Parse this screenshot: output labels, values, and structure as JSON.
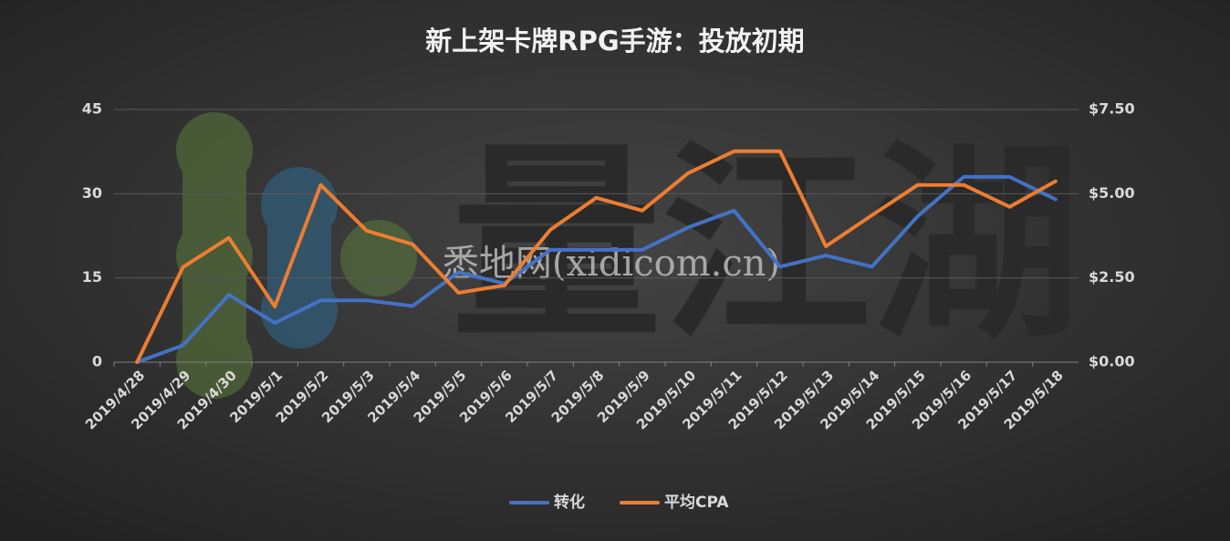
{
  "chart_data": {
    "type": "line",
    "title": "新上架卡牌RPG手游：投放初期",
    "x": [
      "2019/4/28",
      "2019/4/29",
      "2019/4/30",
      "2019/5/1",
      "2019/5/2",
      "2019/5/3",
      "2019/5/4",
      "2019/5/5",
      "2019/5/6",
      "2019/5/7",
      "2019/5/8",
      "2019/5/9",
      "2019/5/10",
      "2019/5/11",
      "2019/5/12",
      "2019/5/13",
      "2019/5/14",
      "2019/5/15",
      "2019/5/16",
      "2019/5/17",
      "2019/5/18"
    ],
    "series": [
      {
        "name": "转化",
        "color": "#4472c4",
        "values": [
          0,
          3,
          12,
          7,
          11,
          11,
          10,
          16,
          14,
          20,
          20,
          20,
          24,
          27,
          17,
          19,
          17,
          26,
          33,
          33,
          29
        ]
      },
      {
        "name": "平均CPA",
        "color": "#ed7d31",
        "axis": "y2",
        "values": [
          0,
          2.82,
          3.69,
          1.65,
          5.26,
          3.9,
          3.5,
          2.06,
          2.28,
          3.93,
          4.88,
          4.5,
          5.61,
          6.26,
          6.26,
          3.44,
          4.36,
          5.26,
          5.26,
          4.61,
          5.37
        ]
      }
    ],
    "ylim": [
      0,
      45
    ],
    "yticks": [
      0,
      15,
      30,
      45
    ],
    "y2lim": [
      0,
      7.5
    ],
    "y2ticks": [
      {
        "value": 0,
        "label": "$0.00"
      },
      {
        "value": 2.5,
        "label": "$2.50"
      },
      {
        "value": 5,
        "label": "$5.00"
      },
      {
        "value": 7.5,
        "label": "$7.50"
      }
    ],
    "grid": true,
    "legend": "bottom",
    "annotations": [
      "量江湖",
      "悉地网(xidicom.cn)"
    ]
  }
}
